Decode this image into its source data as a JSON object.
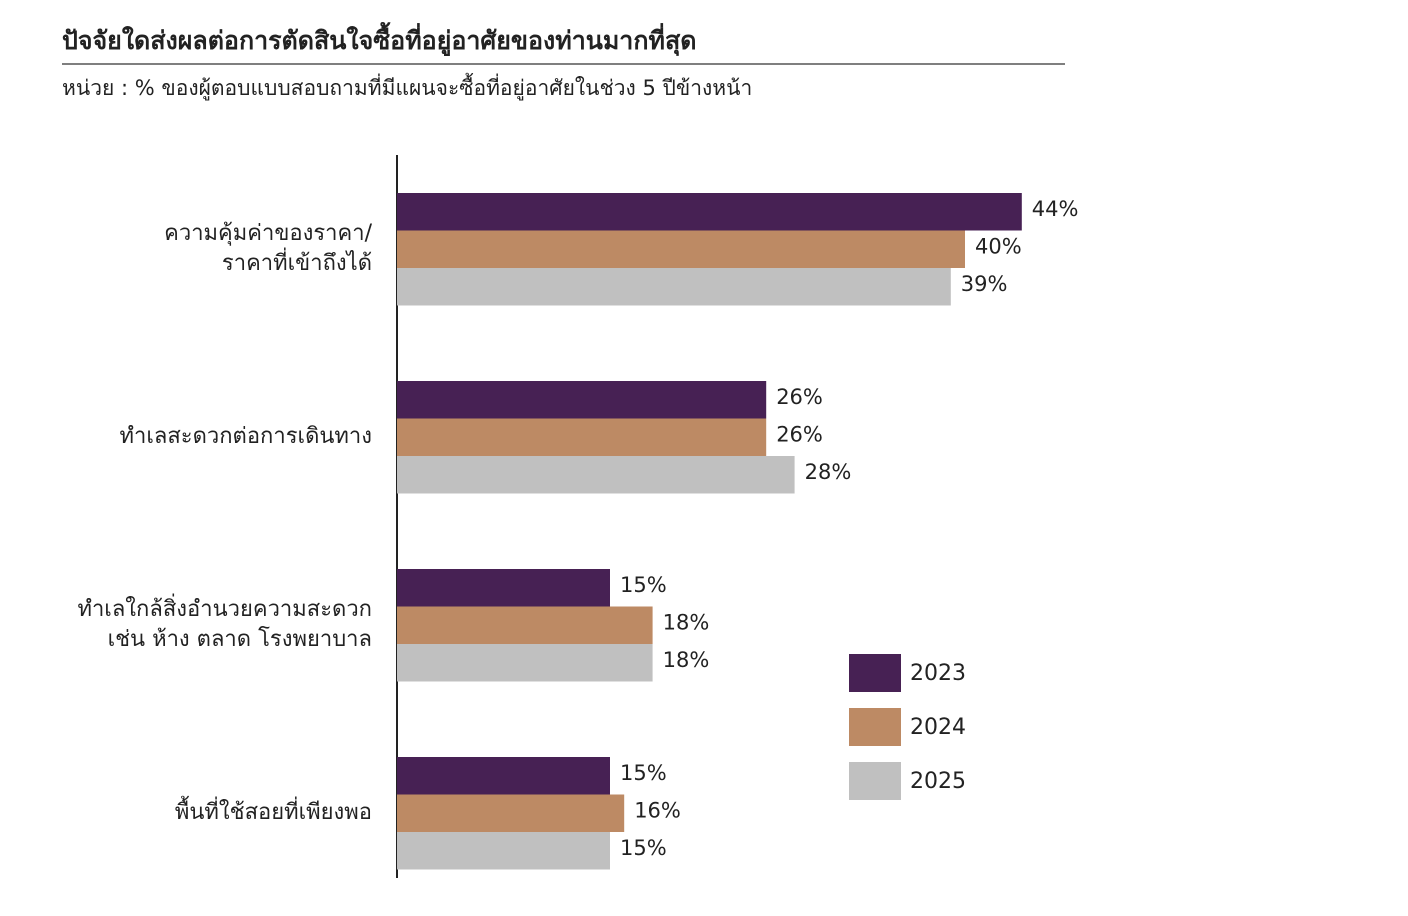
{
  "chart_data": {
    "type": "bar",
    "orientation": "horizontal",
    "title": "ปัจจัยใดส่งผลต่อการตัดสินใจซื้อที่อยู่อาศัยของท่านมากที่สุด",
    "subtitle": "หน่วย : % ของผู้ตอบแบบสอบถามที่มีแผนจะซื้อที่อยู่อาศัยในช่วง 5 ปีข้างหน้า",
    "categories": [
      "ความคุ้มค่าของราคา/\nราคาที่เข้าถึงได้",
      "ทำเลสะดวกต่อการเดินทาง",
      "ทำเลใกล้สิ่งอำนวยความสะดวก\nเช่น ห้าง ตลาด โรงพยาบาล",
      "พื้นที่ใช้สอยที่เพียงพอ"
    ],
    "series": [
      {
        "name": "2023",
        "color": "#472154",
        "values": [
          44,
          26,
          15,
          15
        ],
        "value_labels": [
          "44%",
          "26%",
          "15%",
          "15%"
        ]
      },
      {
        "name": "2024",
        "color": "#bd8a64",
        "values": [
          40,
          26,
          18,
          16
        ],
        "value_labels": [
          "40%",
          "26%",
          "18%",
          "16%"
        ]
      },
      {
        "name": "2025",
        "color": "#c0c0c0",
        "values": [
          39,
          28,
          18,
          15
        ],
        "value_labels": [
          "39%",
          "28%",
          "18%",
          "15%"
        ]
      }
    ],
    "legend": "bottom-right"
  }
}
